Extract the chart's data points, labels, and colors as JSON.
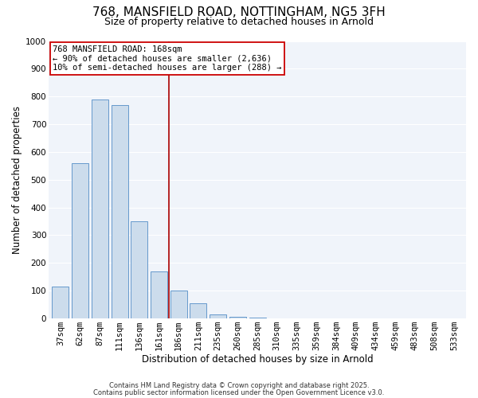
{
  "title": "768, MANSFIELD ROAD, NOTTINGHAM, NG5 3FH",
  "subtitle": "Size of property relative to detached houses in Arnold",
  "xlabel": "Distribution of detached houses by size in Arnold",
  "ylabel": "Number of detached properties",
  "categories": [
    "37sqm",
    "62sqm",
    "87sqm",
    "111sqm",
    "136sqm",
    "161sqm",
    "186sqm",
    "211sqm",
    "235sqm",
    "260sqm",
    "285sqm",
    "310sqm",
    "335sqm",
    "359sqm",
    "384sqm",
    "409sqm",
    "434sqm",
    "459sqm",
    "483sqm",
    "508sqm",
    "533sqm"
  ],
  "values": [
    115,
    560,
    790,
    770,
    350,
    170,
    100,
    55,
    15,
    5,
    2,
    0,
    0,
    0,
    0,
    0,
    0,
    0,
    0,
    0,
    0
  ],
  "bar_color": "#ccdcec",
  "bar_edge_color": "#6699cc",
  "vline_x": 5.5,
  "vline_color": "#aa0000",
  "annotation_text": "768 MANSFIELD ROAD: 168sqm\n← 90% of detached houses are smaller (2,636)\n10% of semi-detached houses are larger (288) →",
  "annotation_box_color": "#ffffff",
  "annotation_box_edge": "#cc0000",
  "ylim": [
    0,
    1000
  ],
  "yticks": [
    0,
    100,
    200,
    300,
    400,
    500,
    600,
    700,
    800,
    900,
    1000
  ],
  "footer1": "Contains HM Land Registry data © Crown copyright and database right 2025.",
  "footer2": "Contains public sector information licensed under the Open Government Licence v3.0.",
  "bg_color": "#ffffff",
  "plot_bg_color": "#f0f4fa",
  "grid_color": "#ffffff",
  "title_fontsize": 11,
  "subtitle_fontsize": 9,
  "axis_label_fontsize": 8.5,
  "tick_fontsize": 7.5,
  "annotation_fontsize": 7.5,
  "footer_fontsize": 6.0
}
